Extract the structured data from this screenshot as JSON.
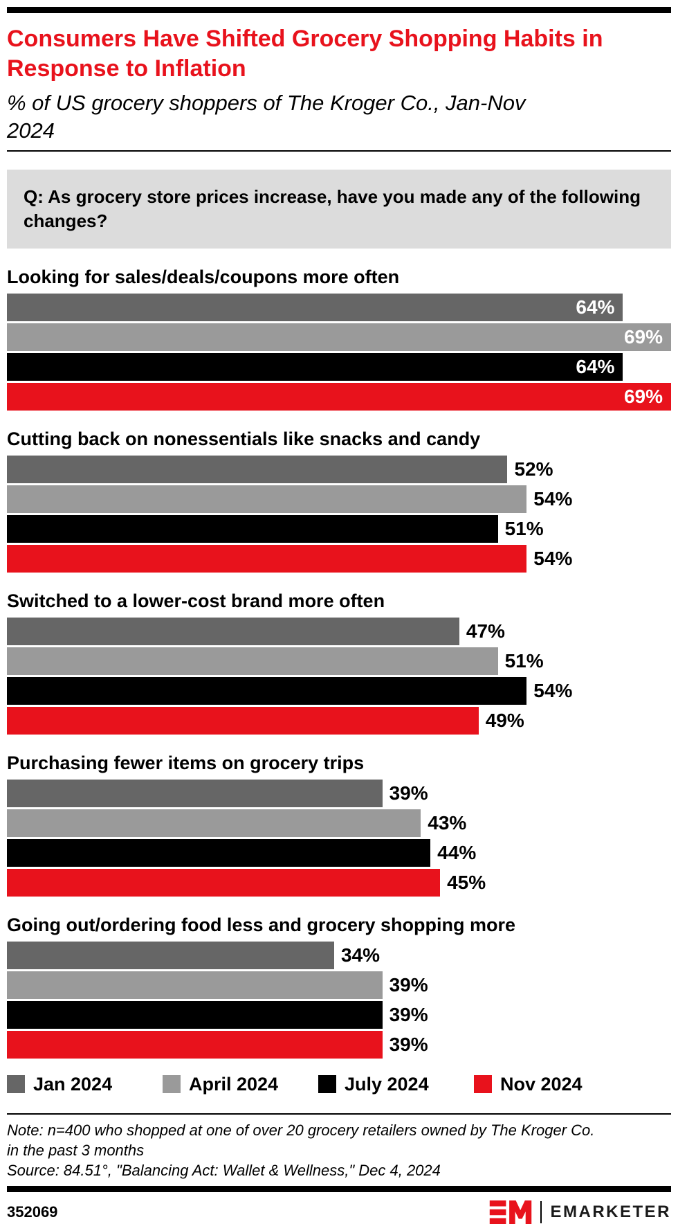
{
  "colors": {
    "accent_red": "#e8121c",
    "dark_gray": "#666666",
    "mid_gray": "#9a9a9a",
    "black": "#000000",
    "question_box_bg": "#dcdcdc"
  },
  "header": {
    "title_lines": [
      "Consumers Have Shifted Grocery Shopping Habits",
      "in Response to Inflation"
    ],
    "subtitle_lines": [
      "% of US grocery shoppers of The Kroger Co., Jan-",
      "Nov 2024"
    ]
  },
  "question": {
    "lines": [
      "Q: As grocery store prices increase, have you made any of the following",
      "changes?"
    ]
  },
  "chart_data": {
    "type": "bar",
    "orientation": "horizontal",
    "unit": "%",
    "xlim": [
      0,
      69
    ],
    "grid": false,
    "value_label_suffix": "%",
    "categories": [
      "Looking for sales/deals/coupons more often",
      "Cutting back on nonessentials like snacks and candy",
      "Switched to a lower-cost brand more often",
      "Purchasing fewer items on grocery trips",
      "Going out/ordering food less and grocery shopping more"
    ],
    "series": [
      {
        "name": "Jan 2024",
        "color": "#666666",
        "values": [
          64,
          52,
          47,
          39,
          34
        ]
      },
      {
        "name": "April 2024",
        "color": "#9a9a9a",
        "values": [
          69,
          54,
          51,
          43,
          39
        ]
      },
      {
        "name": "July 2024",
        "color": "#000000",
        "values": [
          64,
          51,
          54,
          44,
          39
        ]
      },
      {
        "name": "Nov 2024",
        "color": "#e8121c",
        "values": [
          69,
          54,
          49,
          45,
          39
        ]
      }
    ],
    "value_labels_inside_by_category": [
      true,
      false,
      false,
      false,
      false
    ],
    "legend_position": "bottom"
  },
  "legend": [
    {
      "label": "Jan 2024",
      "color": "#666666"
    },
    {
      "label": "April 2024",
      "color": "#9a9a9a"
    },
    {
      "label": "July 2024",
      "color": "#000000"
    },
    {
      "label": "Nov 2024",
      "color": "#e8121c"
    }
  ],
  "footer": {
    "note_lines": [
      "Note: n=400 who shopped at one of over 20 grocery retailers owned by The Kroger Co. in",
      "the past 3 months"
    ],
    "source": "Source: 84.51°, \"Balancing Act: Wallet & Wellness,\" Dec 4, 2024",
    "chart_id": "352069",
    "brand": "EMARKETER",
    "logo_text": "EM"
  }
}
